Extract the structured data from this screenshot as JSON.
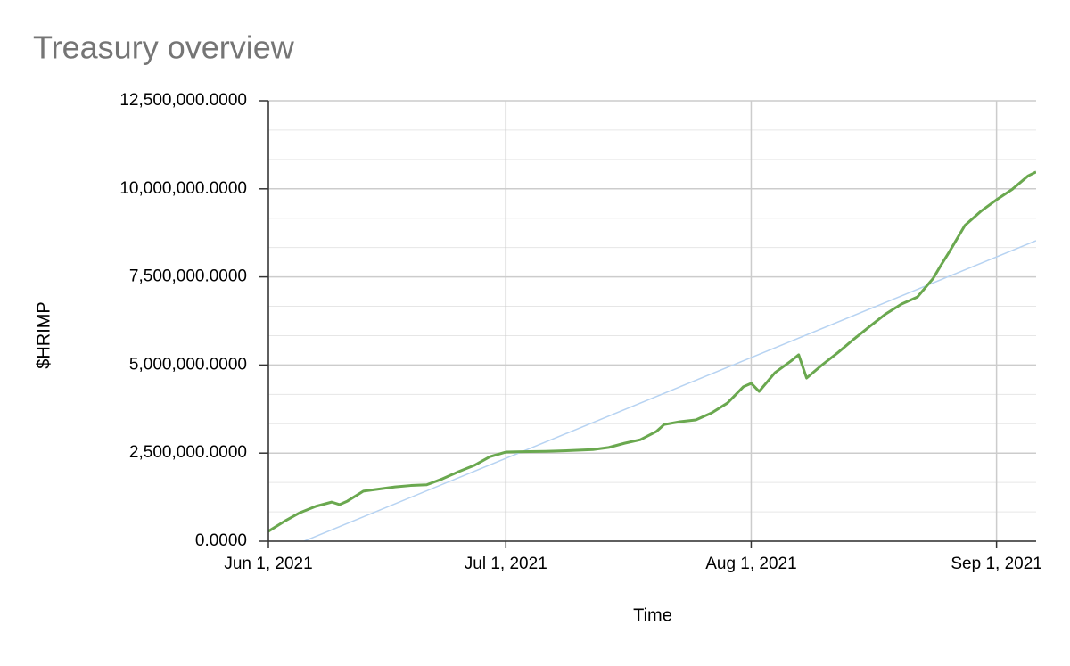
{
  "chart_data": {
    "type": "line",
    "title": "Treasury overview",
    "x_label": "Time",
    "y_label": "$HRIMP",
    "xlim": [
      "2021-06-01",
      "2021-09-06"
    ],
    "xticks": [
      {
        "value": "2021-06-01",
        "label": "Jun 1, 2021"
      },
      {
        "value": "2021-07-01",
        "label": "Jul 1, 2021"
      },
      {
        "value": "2021-08-01",
        "label": "Aug 1, 2021"
      },
      {
        "value": "2021-09-01",
        "label": "Sep 1, 2021"
      }
    ],
    "ylim": [
      0,
      12500000
    ],
    "yticks": [
      {
        "value": 0,
        "label": "0.0000"
      },
      {
        "value": 2500000,
        "label": "2,500,000.0000"
      },
      {
        "value": 5000000,
        "label": "5,000,000.0000"
      },
      {
        "value": 7500000,
        "label": "7,500,000.0000"
      },
      {
        "value": 10000000,
        "label": "10,000,000.0000"
      },
      {
        "value": 12500000,
        "label": "12,500,000.0000"
      }
    ],
    "grid": true,
    "minor_grid_per_interval": 2,
    "series": [
      {
        "color": "#6aa84f",
        "x": [
          "2021-06-01",
          "2021-06-03",
          "2021-06-05",
          "2021-06-07",
          "2021-06-09",
          "2021-06-10",
          "2021-06-11",
          "2021-06-13",
          "2021-06-15",
          "2021-06-17",
          "2021-06-19",
          "2021-06-21",
          "2021-06-23",
          "2021-06-25",
          "2021-06-27",
          "2021-06-29",
          "2021-07-01",
          "2021-07-03",
          "2021-07-06",
          "2021-07-09",
          "2021-07-12",
          "2021-07-14",
          "2021-07-16",
          "2021-07-18",
          "2021-07-20",
          "2021-07-21",
          "2021-07-23",
          "2021-07-25",
          "2021-07-27",
          "2021-07-29",
          "2021-07-31",
          "2021-08-01",
          "2021-08-02",
          "2021-08-04",
          "2021-08-06",
          "2021-08-07",
          "2021-08-08",
          "2021-08-10",
          "2021-08-12",
          "2021-08-14",
          "2021-08-16",
          "2021-08-18",
          "2021-08-20",
          "2021-08-22",
          "2021-08-24",
          "2021-08-25",
          "2021-08-26",
          "2021-08-28",
          "2021-08-30",
          "2021-09-01",
          "2021-09-03",
          "2021-09-05",
          "2021-09-06"
        ],
        "values": [
          280000,
          560000,
          810000,
          990000,
          1110000,
          1040000,
          1140000,
          1420000,
          1480000,
          1540000,
          1580000,
          1600000,
          1770000,
          1970000,
          2150000,
          2400000,
          2530000,
          2540000,
          2550000,
          2570000,
          2600000,
          2660000,
          2780000,
          2880000,
          3110000,
          3310000,
          3390000,
          3440000,
          3640000,
          3920000,
          4380000,
          4480000,
          4250000,
          4780000,
          5110000,
          5290000,
          4630000,
          5010000,
          5360000,
          5740000,
          6100000,
          6450000,
          6730000,
          6930000,
          7460000,
          7840000,
          8200000,
          8960000,
          9360000,
          9690000,
          9990000,
          10370000,
          10480000
        ]
      },
      {
        "color": "#b7d3f2",
        "x": [
          "2021-06-01",
          "2021-09-06"
        ],
        "values": [
          -415000,
          8530000
        ]
      }
    ]
  }
}
